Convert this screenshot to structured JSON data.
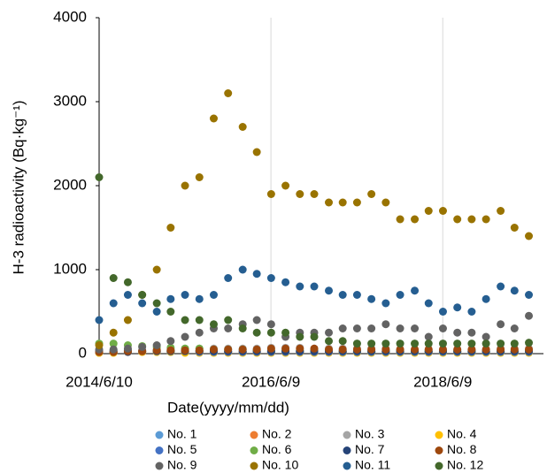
{
  "chart_data": {
    "type": "scatter",
    "xlabel": "Date(yyyy/mm/dd)",
    "ylabel": "H-3 radioactivity (Bq·kg⁻¹)",
    "x": [
      "2014/6/10",
      "2014/8/10",
      "2014/10/10",
      "2014/12/10",
      "2015/2/10",
      "2015/4/10",
      "2015/6/10",
      "2015/8/10",
      "2015/10/10",
      "2015/12/10",
      "2016/2/10",
      "2016/4/10",
      "2016/6/10",
      "2016/8/10",
      "2016/10/10",
      "2016/12/10",
      "2017/2/10",
      "2017/4/10",
      "2017/6/10",
      "2017/8/10",
      "2017/10/10",
      "2017/12/10",
      "2018/2/10",
      "2018/4/10",
      "2018/6/10",
      "2018/8/10",
      "2018/10/10",
      "2018/12/10",
      "2019/2/10",
      "2019/4/10",
      "2019/6/10"
    ],
    "xlim": [
      "2014/6/10",
      "2019/8/11"
    ],
    "xticks": [
      "2014/6/10",
      "2016/6/9",
      "2018/6/9"
    ],
    "ylim": [
      0,
      4000
    ],
    "yticks": [
      0,
      1000,
      2000,
      3000,
      4000
    ],
    "grid": "x",
    "legend": "bottom",
    "series": [
      {
        "name": "No. 1",
        "color": "#5b9bd5",
        "values": [
          20,
          30,
          40,
          30,
          30,
          20,
          20,
          30,
          30,
          20,
          20,
          20,
          30,
          30,
          20,
          20,
          20,
          20,
          20,
          20,
          30,
          20,
          20,
          20,
          20,
          20,
          20,
          20,
          20,
          20,
          20
        ]
      },
      {
        "name": "No. 2",
        "color": "#ed7d31",
        "values": [
          10,
          20,
          20,
          20,
          20,
          30,
          30,
          30,
          20,
          20,
          20,
          20,
          20,
          20,
          20,
          20,
          20,
          20,
          20,
          20,
          20,
          20,
          20,
          20,
          20,
          20,
          20,
          20,
          20,
          20,
          20
        ]
      },
      {
        "name": "No. 3",
        "color": "#a5a5a5",
        "values": [
          30,
          30,
          40,
          40,
          50,
          50,
          60,
          60,
          60,
          60,
          60,
          60,
          70,
          70,
          70,
          60,
          60,
          60,
          60,
          60,
          60,
          50,
          50,
          50,
          50,
          50,
          50,
          50,
          60,
          60,
          60
        ]
      },
      {
        "name": "No. 4",
        "color": "#ffc000",
        "values": [
          10,
          10,
          20,
          20,
          20,
          20,
          10,
          10,
          10,
          10,
          10,
          10,
          10,
          10,
          10,
          10,
          10,
          10,
          10,
          10,
          10,
          10,
          10,
          10,
          10,
          10,
          10,
          10,
          10,
          10,
          10
        ]
      },
      {
        "name": "No. 5",
        "color": "#4472c4",
        "values": [
          30,
          40,
          40,
          30,
          30,
          30,
          30,
          20,
          20,
          20,
          20,
          20,
          20,
          20,
          20,
          20,
          20,
          20,
          20,
          20,
          20,
          20,
          20,
          20,
          20,
          20,
          20,
          20,
          20,
          20,
          20
        ]
      },
      {
        "name": "No. 6",
        "color": "#70ad47",
        "values": [
          120,
          120,
          100,
          90,
          80,
          70,
          60,
          60,
          50,
          50,
          50,
          40,
          40,
          40,
          40,
          40,
          40,
          30,
          30,
          30,
          30,
          30,
          30,
          30,
          30,
          30,
          30,
          30,
          30,
          30,
          30
        ]
      },
      {
        "name": "No. 7",
        "color": "#264478",
        "values": [
          20,
          20,
          20,
          30,
          30,
          30,
          30,
          30,
          30,
          30,
          30,
          30,
          30,
          30,
          30,
          30,
          30,
          30,
          30,
          30,
          30,
          30,
          30,
          30,
          30,
          30,
          30,
          30,
          30,
          30,
          30
        ]
      },
      {
        "name": "No. 8",
        "color": "#9e480e",
        "values": [
          20,
          20,
          30,
          30,
          40,
          40,
          40,
          40,
          50,
          50,
          50,
          50,
          60,
          60,
          60,
          60,
          50,
          50,
          50,
          50,
          50,
          50,
          50,
          50,
          50,
          50,
          50,
          50,
          50,
          50,
          50
        ]
      },
      {
        "name": "No. 9",
        "color": "#636363",
        "values": [
          50,
          50,
          60,
          80,
          100,
          150,
          200,
          250,
          300,
          300,
          350,
          400,
          350,
          200,
          250,
          250,
          250,
          300,
          300,
          300,
          350,
          300,
          300,
          200,
          300,
          250,
          250,
          200,
          350,
          300,
          450
        ]
      },
      {
        "name": "No. 10",
        "color": "#997300",
        "values": [
          100,
          250,
          400,
          700,
          1000,
          1500,
          2000,
          2100,
          2800,
          3100,
          2700,
          2400,
          1900,
          2000,
          1900,
          1900,
          1800,
          1800,
          1800,
          1900,
          1800,
          1600,
          1600,
          1700,
          1700,
          1600,
          1600,
          1600,
          1700,
          1500,
          1400
        ]
      },
      {
        "name": "No. 11",
        "color": "#255e91",
        "values": [
          400,
          600,
          700,
          600,
          500,
          650,
          700,
          650,
          700,
          900,
          1000,
          950,
          900,
          850,
          800,
          800,
          750,
          700,
          700,
          650,
          600,
          700,
          750,
          600,
          500,
          550,
          500,
          650,
          800,
          750,
          700
        ]
      },
      {
        "name": "No. 12",
        "color": "#43682b",
        "values": [
          2100,
          900,
          850,
          700,
          600,
          500,
          400,
          400,
          350,
          400,
          300,
          250,
          250,
          250,
          200,
          200,
          150,
          150,
          120,
          120,
          120,
          120,
          120,
          120,
          120,
          120,
          120,
          120,
          120,
          120,
          130
        ]
      }
    ]
  }
}
